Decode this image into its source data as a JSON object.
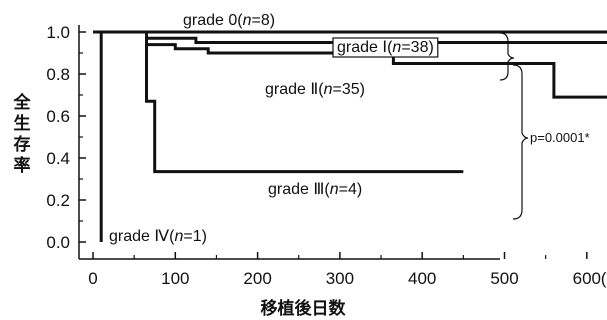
{
  "chart_data": {
    "type": "line",
    "title": "",
    "xlabel": "移植後日数",
    "ylabel": "全生存率",
    "xlim": [
      0,
      630
    ],
    "ylim": [
      0,
      1.05
    ],
    "x_ticks": [
      0,
      100,
      200,
      300,
      400,
      500,
      600
    ],
    "x_tick_labels": [
      "0",
      "100",
      "200",
      "300",
      "400",
      "500",
      "600"
    ],
    "x_unit_label": "(日)",
    "y_ticks": [
      0.0,
      0.2,
      0.4,
      0.6,
      0.8,
      1.0
    ],
    "y_tick_labels": [
      "0.0",
      "0.2",
      "0.4",
      "0.6",
      "0.8",
      "1.0"
    ],
    "grid": false,
    "series": [
      {
        "name": "grade 0(n=8)",
        "label_parts": {
          "grade": "grade 0",
          "n_open": "(",
          "n_var": "n",
          "n_eq": "=8)"
        },
        "points": [
          [
            0,
            1.0
          ],
          [
            630,
            1.0
          ]
        ]
      },
      {
        "name": "grade Ⅰ(n=38)",
        "label_parts": {
          "grade": "grade Ⅰ",
          "n_open": "(",
          "n_var": "n",
          "n_eq": "=38)"
        },
        "points": [
          [
            0,
            1.0
          ],
          [
            65,
            1.0
          ],
          [
            65,
            0.97
          ],
          [
            125,
            0.97
          ],
          [
            125,
            0.95
          ],
          [
            630,
            0.95
          ]
        ]
      },
      {
        "name": "grade Ⅱ(n=35)",
        "label_parts": {
          "grade": "grade Ⅱ",
          "n_open": "(",
          "n_var": "n",
          "n_eq": "=35)"
        },
        "points": [
          [
            0,
            1.0
          ],
          [
            65,
            1.0
          ],
          [
            65,
            0.94
          ],
          [
            100,
            0.94
          ],
          [
            100,
            0.92
          ],
          [
            140,
            0.92
          ],
          [
            140,
            0.9
          ],
          [
            365,
            0.9
          ],
          [
            365,
            0.85
          ],
          [
            560,
            0.85
          ],
          [
            560,
            0.69
          ],
          [
            630,
            0.69
          ]
        ]
      },
      {
        "name": "grade Ⅲ(n=4)",
        "label_parts": {
          "grade": "grade Ⅲ",
          "n_open": "(",
          "n_var": "n",
          "n_eq": "=4)"
        },
        "points": [
          [
            0,
            1.0
          ],
          [
            65,
            1.0
          ],
          [
            65,
            0.67
          ],
          [
            75,
            0.67
          ],
          [
            75,
            0.335
          ],
          [
            450,
            0.335
          ]
        ]
      },
      {
        "name": "grade Ⅳ(n=1)",
        "label_parts": {
          "grade": "grade Ⅳ",
          "n_open": "(",
          "n_var": "n",
          "n_eq": "=1)"
        },
        "points": [
          [
            0,
            1.0
          ],
          [
            10,
            1.0
          ],
          [
            10,
            0.0
          ]
        ]
      }
    ],
    "annotations": [
      {
        "text": "p=0.0001*",
        "between": [
          "grade Ⅰ(n=38)",
          "grade Ⅱ(n=35)",
          "grade Ⅲ(n=4)"
        ]
      }
    ]
  }
}
